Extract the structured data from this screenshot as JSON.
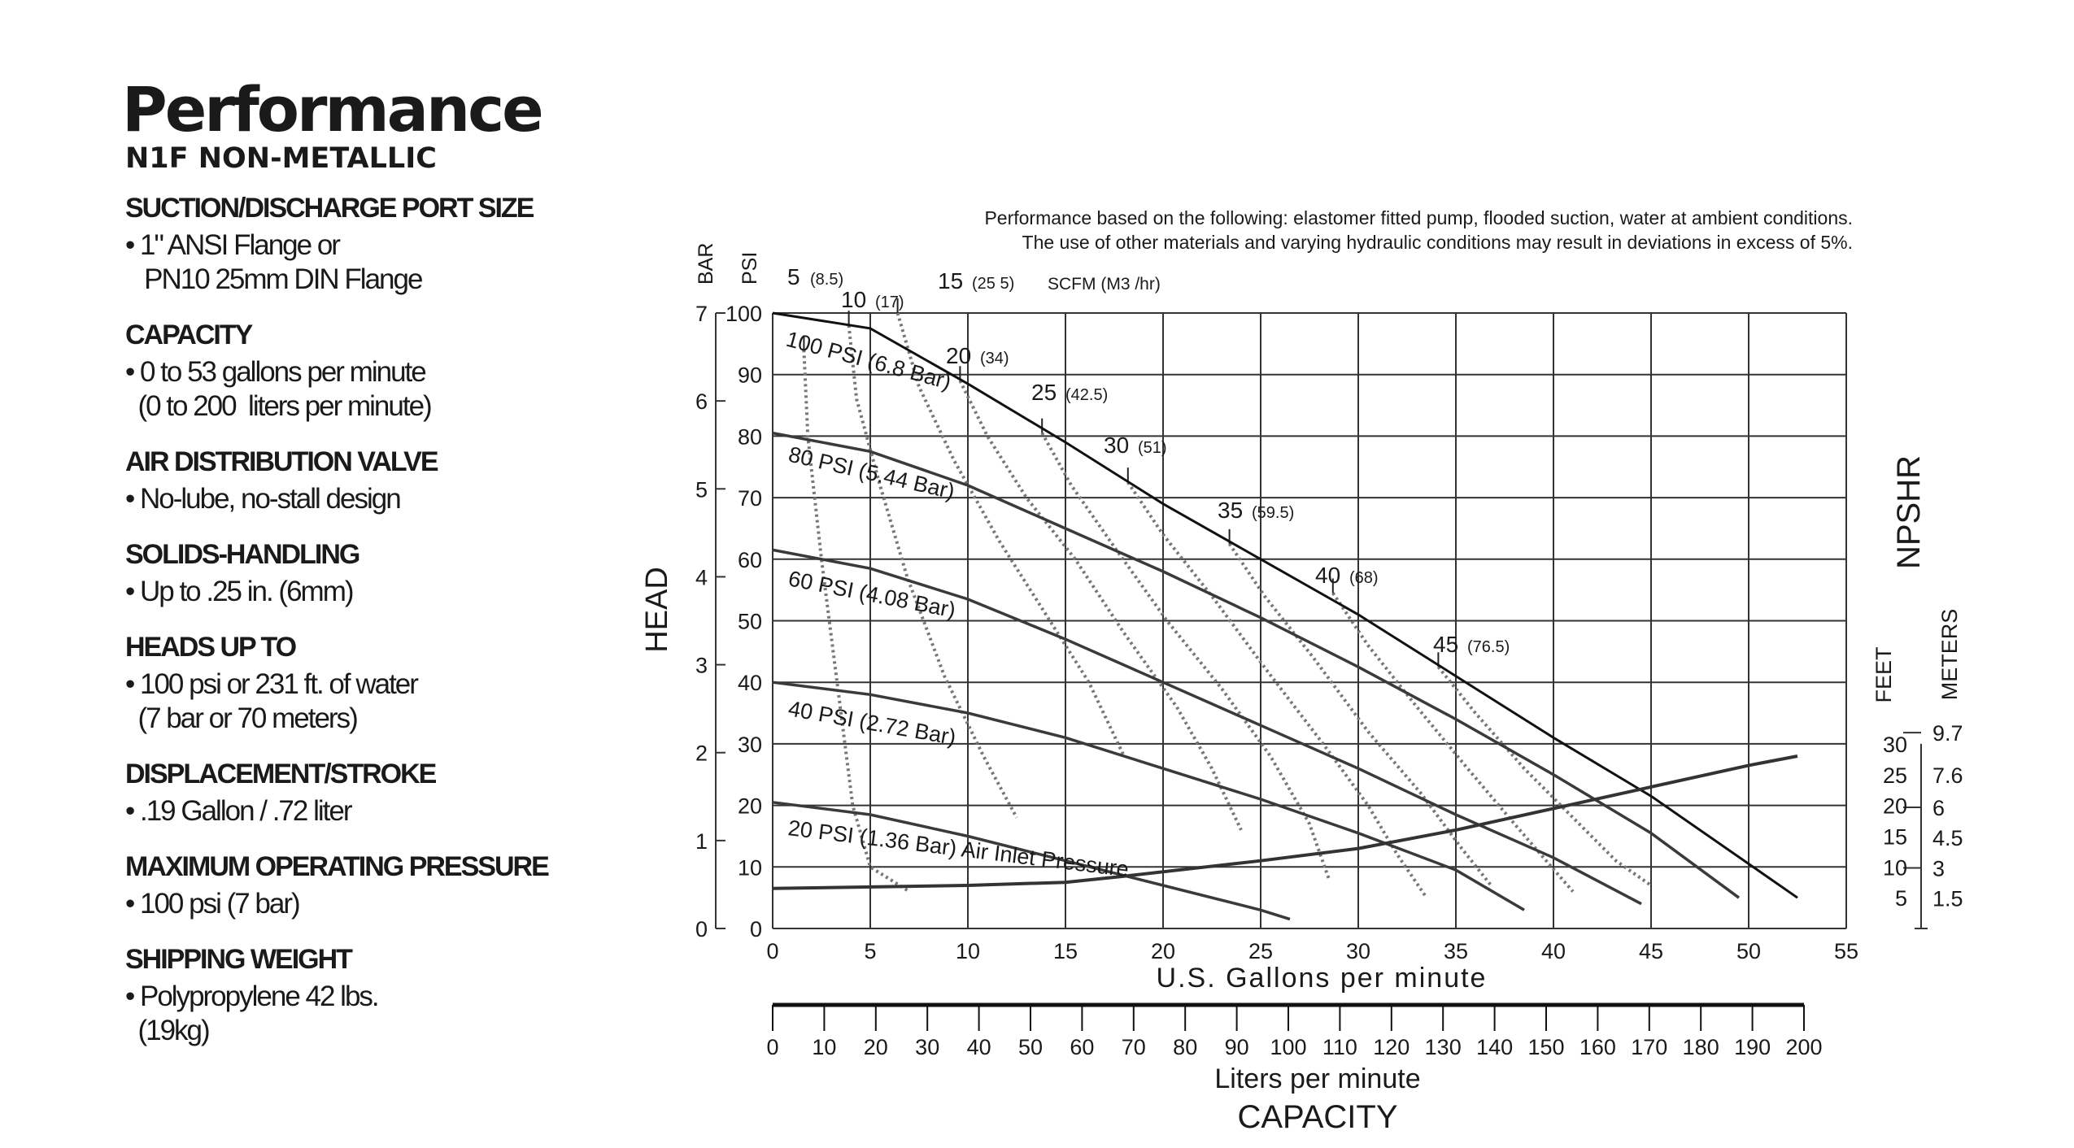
{
  "specs": {
    "title": "Performance",
    "subtitle": "N1F NON-METALLIC",
    "sections": [
      {
        "heading": "SUCTION/DISCHARGE PORT SIZE",
        "lines": [
          "• 1\" ANSI Flange or",
          "   PN10 25mm DIN Flange"
        ]
      },
      {
        "heading": "CAPACITY",
        "lines": [
          "• 0 to 53 gallons per minute",
          "  (0 to 200  liters per minute)"
        ]
      },
      {
        "heading": "AIR DISTRIBUTION VALVE",
        "lines": [
          "• No-lube, no-stall design"
        ]
      },
      {
        "heading": "SOLIDS-HANDLING",
        "lines": [
          "• Up to .25 in. (6mm)"
        ]
      },
      {
        "heading": "HEADS UP TO",
        "lines": [
          "• 100 psi or 231 ft. of water",
          "  (7 bar or 70 meters)"
        ]
      },
      {
        "heading": "DISPLACEMENT/STROKE",
        "lines": [
          "• .19 Gallon / .72 liter"
        ]
      },
      {
        "heading": "MAXIMUM OPERATING PRESSURE",
        "lines": [
          "• 100 psi (7 bar)"
        ]
      },
      {
        "heading": "SHIPPING WEIGHT",
        "lines": [
          "• Polypropylene 42 lbs.",
          "  (19kg)"
        ]
      }
    ]
  },
  "chart_data": {
    "type": "line",
    "note_lines": [
      "Performance based on the following: elastomer fitted pump, flooded suction, water at ambient conditions.",
      "The use of other materials and varying hydraulic conditions may result in deviations in excess of 5%."
    ],
    "xlabel": "U.S. Gallons per minute",
    "x2label": "Liters per minute",
    "capacity_label": "CAPACITY",
    "head_label": "HEAD",
    "psi_label": "PSI",
    "bar_label": "BAR",
    "npshr_label": "NPSHR",
    "feet_label": "FEET",
    "meters_label": "METERS",
    "scfm_label": "SCFM  (M3 /hr)",
    "xlim": [
      0,
      55
    ],
    "ylim": [
      0,
      100
    ],
    "grid": true,
    "x_ticks": [
      0,
      5,
      10,
      15,
      20,
      25,
      30,
      35,
      40,
      45,
      50,
      55
    ],
    "y_ticks": [
      0,
      10,
      20,
      30,
      40,
      50,
      60,
      70,
      80,
      90,
      100
    ],
    "bar_ticks": [
      "0",
      "1",
      "2",
      "3",
      "4",
      "5",
      "6",
      "7"
    ],
    "lpm_ticks": [
      0,
      10,
      20,
      30,
      40,
      50,
      60,
      70,
      80,
      90,
      100,
      110,
      120,
      130,
      140,
      150,
      160,
      170,
      180,
      190,
      200
    ],
    "npshr_feet_ticks": [
      5,
      10,
      15,
      20,
      25,
      30
    ],
    "npshr_meter_ticks": [
      "1.5",
      "3",
      "4.5",
      "6",
      "7.6",
      "9.7"
    ],
    "pressure_curves": [
      {
        "label": "100 PSI (6.8 Bar)",
        "points": [
          [
            0,
            100
          ],
          [
            5,
            97.5
          ],
          [
            10,
            88.5
          ],
          [
            15,
            79
          ],
          [
            20,
            69
          ],
          [
            25,
            60
          ],
          [
            30,
            51
          ],
          [
            35,
            41
          ],
          [
            40,
            31
          ],
          [
            45,
            21.5
          ],
          [
            50,
            10.5
          ],
          [
            52.5,
            5
          ]
        ]
      },
      {
        "label": "80 PSI (5.44 Bar)",
        "points": [
          [
            0,
            80.5
          ],
          [
            5,
            77.5
          ],
          [
            10,
            72
          ],
          [
            15,
            65
          ],
          [
            20,
            58
          ],
          [
            25,
            50.5
          ],
          [
            30,
            42.5
          ],
          [
            35,
            34
          ],
          [
            40,
            25
          ],
          [
            45,
            15.5
          ],
          [
            49.5,
            5
          ]
        ]
      },
      {
        "label": "60 PSI (4.08 Bar)",
        "points": [
          [
            0,
            61.5
          ],
          [
            5,
            58.5
          ],
          [
            10,
            53.5
          ],
          [
            15,
            47
          ],
          [
            20,
            40
          ],
          [
            25,
            33
          ],
          [
            30,
            26
          ],
          [
            35,
            18.5
          ],
          [
            40,
            11.5
          ],
          [
            44.5,
            4
          ]
        ]
      },
      {
        "label": "40 PSI (2.72 Bar)",
        "points": [
          [
            0,
            40
          ],
          [
            5,
            38
          ],
          [
            10,
            35
          ],
          [
            15,
            31
          ],
          [
            20,
            26
          ],
          [
            25,
            21
          ],
          [
            30,
            15.5
          ],
          [
            35,
            9.5
          ],
          [
            38.5,
            3
          ]
        ]
      },
      {
        "label": "20 PSI (1.36 Bar) Air Inlet Pressure",
        "points": [
          [
            0,
            20.5
          ],
          [
            5,
            18.5
          ],
          [
            10,
            15
          ],
          [
            15,
            11
          ],
          [
            20,
            7
          ],
          [
            25,
            3
          ],
          [
            26.5,
            1.5
          ]
        ]
      }
    ],
    "npshr_curve": {
      "points": [
        [
          0,
          6.5
        ],
        [
          10,
          7
        ],
        [
          15,
          7.5
        ],
        [
          18,
          8.5
        ],
        [
          25,
          11
        ],
        [
          30,
          13
        ],
        [
          35,
          16
        ],
        [
          40,
          19.5
        ],
        [
          45,
          23
        ],
        [
          50,
          26.5
        ],
        [
          52.5,
          28
        ]
      ]
    },
    "scfm_curves": [
      {
        "label": "5",
        "m3hr": "(8.5)",
        "points": [
          [
            1.6,
            94
          ],
          [
            1.8,
            80
          ],
          [
            2.5,
            60
          ],
          [
            3.3,
            40
          ],
          [
            4.1,
            20
          ],
          [
            5,
            10
          ],
          [
            7,
            6
          ]
        ]
      },
      {
        "label": "10",
        "m3hr": "(17)",
        "points": [
          [
            3.9,
            98
          ],
          [
            4.3,
            86
          ],
          [
            5.5,
            72
          ],
          [
            6.9,
            57
          ],
          [
            8.8,
            41
          ],
          [
            10.8,
            28
          ],
          [
            12.5,
            18
          ]
        ]
      },
      {
        "label": "15",
        "m3hr": "(25 5)",
        "points": [
          [
            6.4,
            100
          ],
          [
            7.5,
            88
          ],
          [
            9.3,
            76
          ],
          [
            11.6,
            63
          ],
          [
            14,
            51
          ],
          [
            16.2,
            40
          ],
          [
            18,
            28
          ]
        ]
      },
      {
        "label": "20",
        "m3hr": "(34)",
        "points": [
          [
            9.6,
            89
          ],
          [
            11,
            80
          ],
          [
            13,
            70
          ],
          [
            15.5,
            60
          ],
          [
            18,
            48
          ],
          [
            20.7,
            36
          ],
          [
            22.5,
            26
          ],
          [
            24,
            16
          ]
        ]
      },
      {
        "label": "25",
        "m3hr": "(42.5)",
        "points": [
          [
            13.8,
            80.5
          ],
          [
            15.3,
            72
          ],
          [
            17.5,
            62
          ],
          [
            20.2,
            50
          ],
          [
            23,
            39
          ],
          [
            25.5,
            28
          ],
          [
            27.5,
            17
          ],
          [
            28.5,
            8
          ]
        ]
      },
      {
        "label": "30",
        "m3hr": "(51)",
        "points": [
          [
            18.2,
            72.5
          ],
          [
            20,
            64
          ],
          [
            22.5,
            54
          ],
          [
            25.3,
            42
          ],
          [
            28.2,
            30
          ],
          [
            30.5,
            20
          ],
          [
            32,
            12
          ],
          [
            33.5,
            5
          ]
        ]
      },
      {
        "label": "35",
        "m3hr": "(59.5)",
        "points": [
          [
            23.4,
            62.5
          ],
          [
            25.2,
            54
          ],
          [
            27.7,
            44
          ],
          [
            30.5,
            32
          ],
          [
            33.2,
            22
          ],
          [
            35.3,
            13
          ],
          [
            36.8,
            7
          ]
        ]
      },
      {
        "label": "40",
        "m3hr": "(68)",
        "points": [
          [
            28.7,
            54.5
          ],
          [
            30.5,
            46
          ],
          [
            33,
            36
          ],
          [
            35.6,
            26
          ],
          [
            38,
            17
          ],
          [
            39.9,
            10
          ],
          [
            41,
            6
          ]
        ]
      },
      {
        "label": "45",
        "m3hr": "(76.5)",
        "points": [
          [
            34.1,
            42.5
          ],
          [
            36,
            35
          ],
          [
            38.5,
            26
          ],
          [
            41,
            18
          ],
          [
            43.2,
            11
          ],
          [
            45,
            7
          ]
        ]
      }
    ]
  }
}
